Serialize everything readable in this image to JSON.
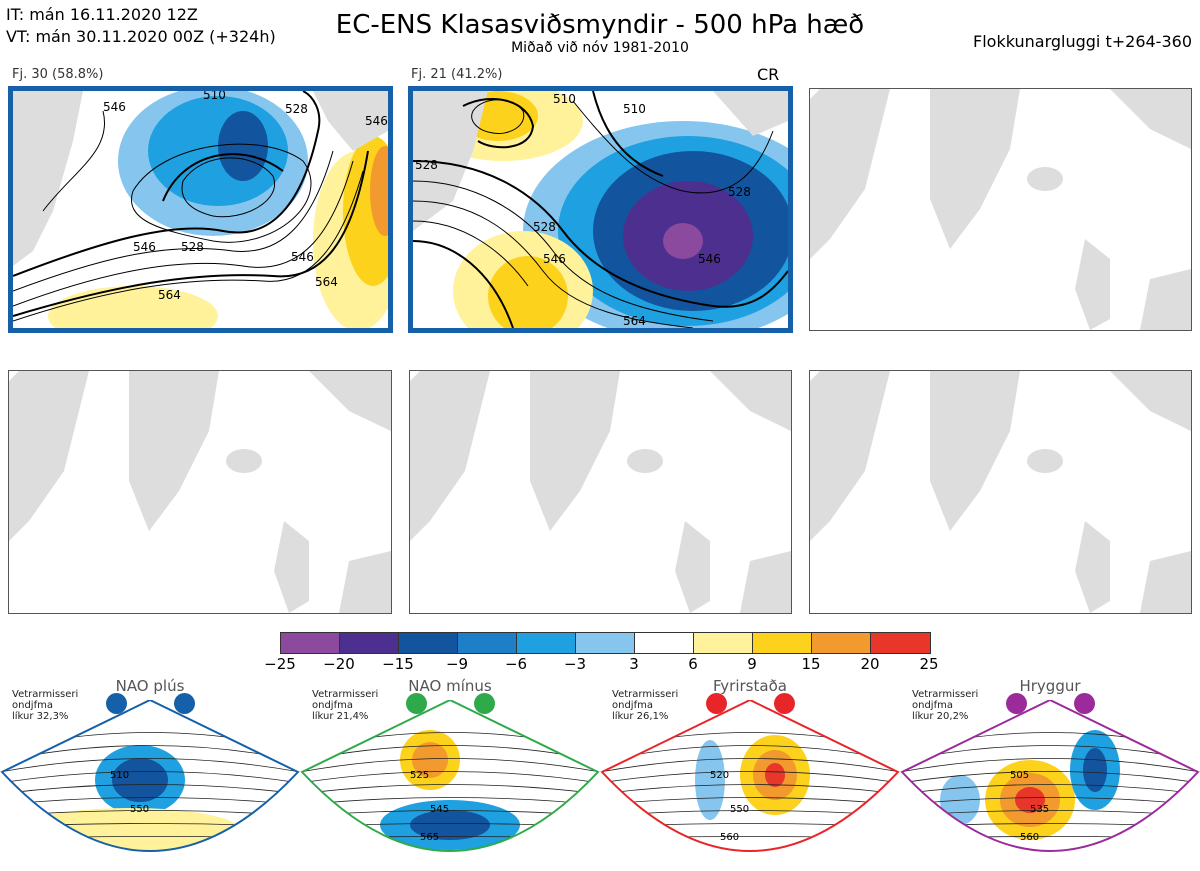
{
  "header": {
    "it_line": "IT: mán 16.11.2020 12Z",
    "vt_line": "VT: mán 30.11.2020 00Z  (+324h)",
    "title": "EC-ENS Klasasviðsmyndir - 500 hPa hæð",
    "subtitle": "Miðað við nóv 1981-2010",
    "window": "Flokkunargluggi t+264-360"
  },
  "panels": [
    {
      "label": "Fj. 30 (58.8%)",
      "active": true,
      "contours": [
        "510",
        "528",
        "546",
        "546",
        "528",
        "546",
        "564",
        "546",
        "564"
      ]
    },
    {
      "label": "Fj. 21 (41.2%)",
      "active": true,
      "badge": "CR",
      "contours": [
        "528",
        "510",
        "510",
        "528",
        "528",
        "546",
        "546",
        "564"
      ]
    },
    {
      "label": "",
      "active": false
    },
    {
      "label": "",
      "active": false
    },
    {
      "label": "",
      "active": false
    },
    {
      "label": "",
      "active": false
    }
  ],
  "legend": {
    "ticks": [
      "−25",
      "−20",
      "−15",
      "−9",
      "−6",
      "−3",
      "3",
      "6",
      "9",
      "15",
      "20",
      "25"
    ],
    "colors": [
      "#8b4a9e",
      "#4c2f8f",
      "#13549e",
      "#1d7fc8",
      "#1fa0e0",
      "#86c6ee",
      "#ffffff",
      "#fff29a",
      "#fdd21c",
      "#f39a2e",
      "#e8362a",
      "#b00d14"
    ]
  },
  "regimes": [
    {
      "name": "NAO plús",
      "stat1": "Vetrarmisseri",
      "stat2": "ondjfma",
      "stat3": "líkur 32,3%",
      "color": "#1560a8",
      "contours": [
        "510",
        "550"
      ]
    },
    {
      "name": "NAO mínus",
      "stat1": "Vetrarmisseri",
      "stat2": "ondjfma",
      "stat3": "líkur 21,4%",
      "color": "#2eaa4a",
      "contours": [
        "525",
        "545",
        "565"
      ]
    },
    {
      "name": "Fyrirstaða",
      "stat1": "Vetrarmisseri",
      "stat2": "ondjfma",
      "stat3": "líkur 26,1%",
      "color": "#e8262a",
      "contours": [
        "520",
        "550",
        "560"
      ]
    },
    {
      "name": "Hryggur",
      "stat1": "Vetrarmisseri",
      "stat2": "ondjfma",
      "stat3": "líkur 20,2%",
      "color": "#9b2a9b",
      "contours": [
        "505",
        "535",
        "560"
      ]
    }
  ]
}
